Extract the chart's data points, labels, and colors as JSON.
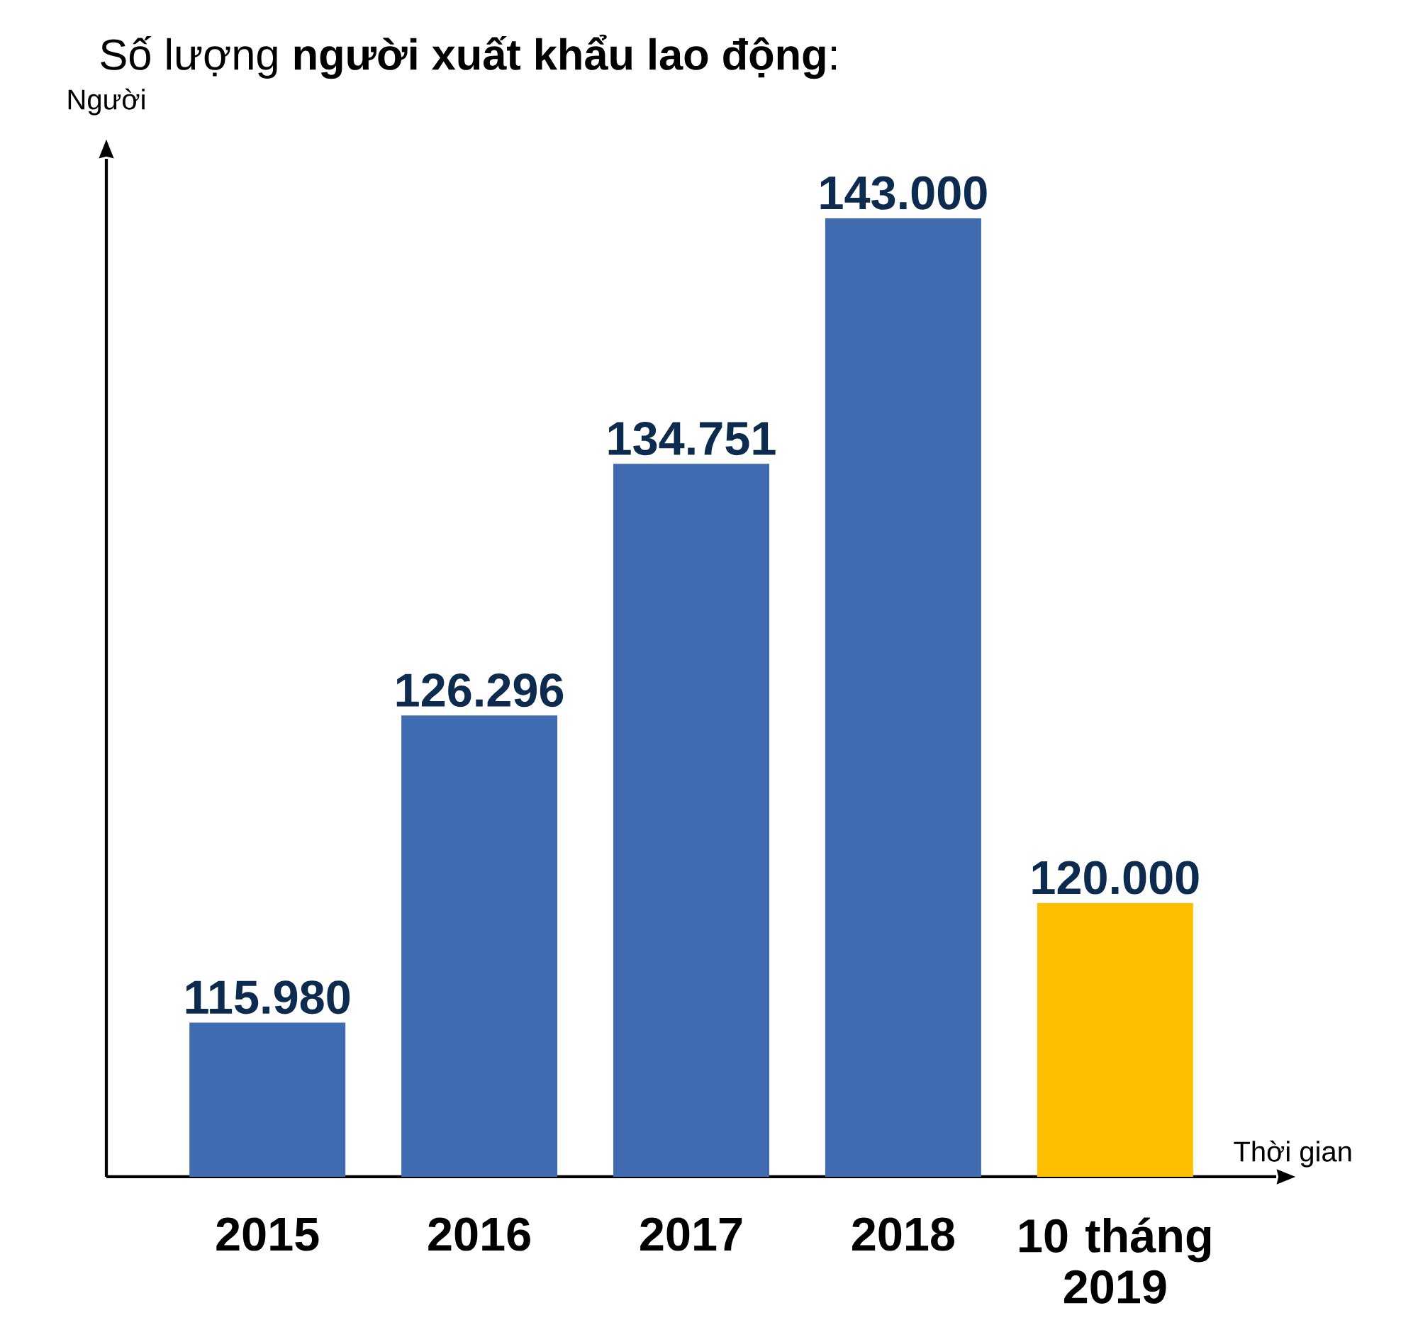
{
  "chart_data": {
    "type": "bar",
    "title": "Số lượng **người xuất khẩu lao động**:",
    "xlabel": "Thời gian",
    "ylabel": "Người",
    "categories": [
      "2015",
      "2016",
      "2017",
      "2018",
      "10 tháng 2019"
    ],
    "values": [
      115980,
      126296,
      134751,
      143000,
      120000
    ],
    "value_labels": [
      "115.980",
      "126.296",
      "134.751",
      "143.000",
      "120.000"
    ],
    "colors": [
      "#416bb0",
      "#416bb0",
      "#416bb0",
      "#416bb0",
      "#fdbf00"
    ],
    "ylim": [
      110800,
      145000
    ]
  }
}
